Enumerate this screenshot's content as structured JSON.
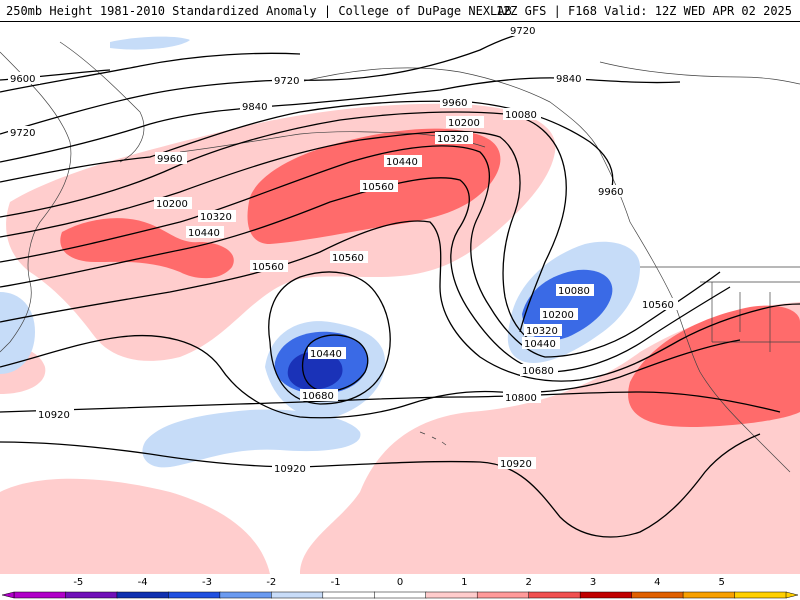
{
  "header": {
    "title_left": "250mb Height 1981-2010 Standardized Anomaly | College of DuPage NEXLAB",
    "title_right": "12Z GFS | F168 Valid: 12Z WED APR 02 2025"
  },
  "contour_labels": {
    "c9720_a": "9720",
    "c9720_b": "9720",
    "c9720_c": "9720",
    "c9600": "9600",
    "c9840_a": "9840",
    "c9840_b": "9840",
    "c9960_a": "9960",
    "c9960_b": "9960",
    "c9960_c": "9960",
    "c10080_a": "10080",
    "c10080_b": "10080",
    "c10200_a": "10200",
    "c10200_b": "10200",
    "c10200_c": "10200",
    "c10320_a": "10320",
    "c10320_b": "10320",
    "c10320_c": "10320",
    "c10440_a": "10440",
    "c10440_b": "10440",
    "c10440_c": "10440",
    "c10440_d": "10440",
    "c10560_a": "10560",
    "c10560_b": "10560",
    "c10560_c": "10560",
    "c10560_d": "10560",
    "c10680_a": "10680",
    "c10680_b": "10680",
    "c10800": "10800",
    "c10920_a": "10920",
    "c10920_b": "10920",
    "c10920_c": "10920"
  },
  "legend": {
    "ticks": [
      "-5",
      "-4",
      "-3",
      "-2",
      "-1",
      "0",
      "1",
      "2",
      "3",
      "4",
      "5"
    ],
    "colors": [
      "#b000c8",
      "#7010b8",
      "#1030b0",
      "#2050e0",
      "#6a9af0",
      "#c8dcf8",
      "#ffffff",
      "#ffffff",
      "#ffcccc",
      "#ff9a9a",
      "#f05050",
      "#c00000",
      "#e06000",
      "#f8a000",
      "#ffd000"
    ]
  },
  "colors": {
    "pos1": "#ffcdcd",
    "pos2": "#ff6b6b",
    "neg1": "#c6dcf8",
    "neg2": "#3a6ae6",
    "neg3": "#1a32b8"
  }
}
